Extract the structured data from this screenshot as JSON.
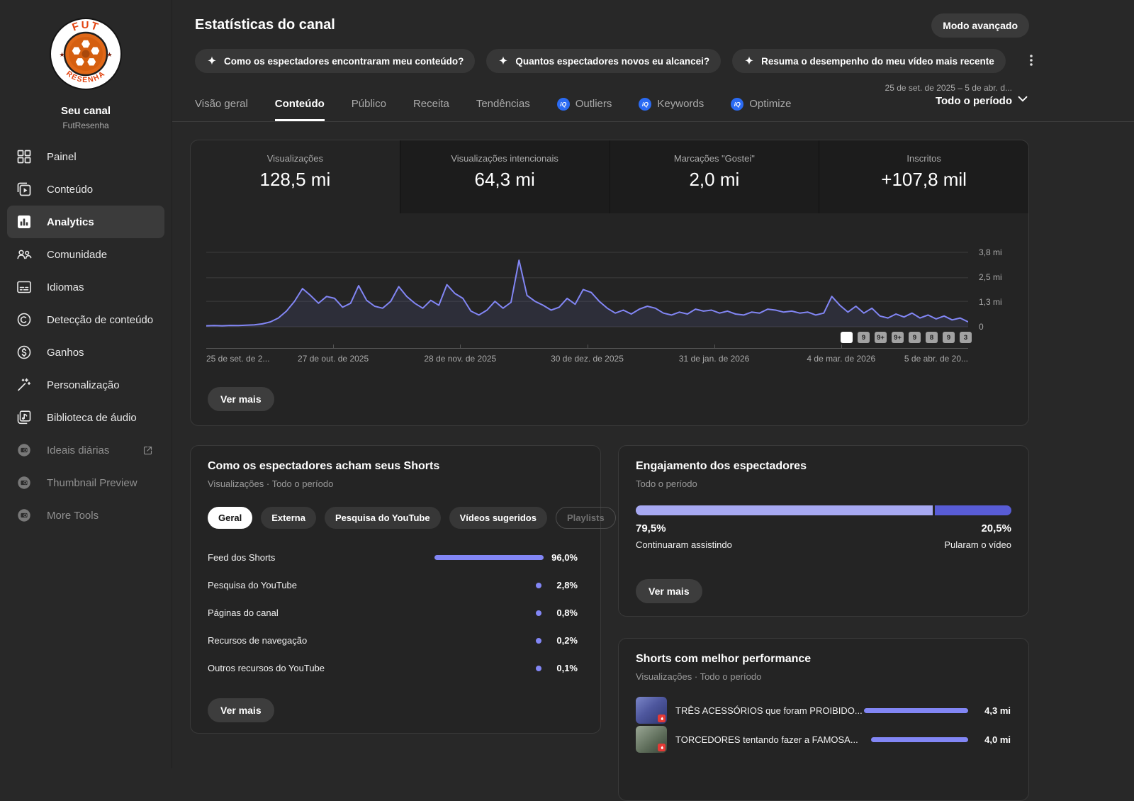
{
  "colors": {
    "accent": "#8286f5",
    "page_bg": "#282828",
    "card_bg": "#242424",
    "vidiq_blue": "#2b6bf3",
    "brand_orange": "#e06818"
  },
  "header": {
    "title": "Estatísticas do canal",
    "advanced_mode_label": "Modo avançado",
    "chips": [
      "Como os espectadores encontraram meu conteúdo?",
      "Quantos espectadores novos eu alcancei?",
      "Resuma o desempenho do meu vídeo mais recente"
    ]
  },
  "sidebar": {
    "channel": {
      "name": "Seu canal",
      "handle": "FutResenha",
      "avatar_top": "FUT",
      "avatar_bottom": "RESENHA"
    },
    "items": [
      {
        "label": "Painel"
      },
      {
        "label": "Conteúdo"
      },
      {
        "label": "Analytics"
      },
      {
        "label": "Comunidade"
      },
      {
        "label": "Idiomas"
      },
      {
        "label": "Detecção de conteúdo"
      },
      {
        "label": "Ganhos"
      },
      {
        "label": "Personalização"
      },
      {
        "label": "Biblioteca de áudio"
      },
      {
        "label": "Ideais diárias"
      },
      {
        "label": "Thumbnail Preview"
      },
      {
        "label": "More Tools"
      }
    ]
  },
  "tabs": [
    "Visão geral",
    "Conteúdo",
    "Público",
    "Receita",
    "Tendências",
    "Outliers",
    "Keywords",
    "Optimize"
  ],
  "period": {
    "range": "25 de set. de 2025 – 5 de abr. d...",
    "label": "Todo o período"
  },
  "stats": [
    {
      "label": "Visualizações",
      "value": "128,5 mi"
    },
    {
      "label": "Visualizações intencionais",
      "value": "64,3 mi"
    },
    {
      "label": "Marcações \"Gostei\"",
      "value": "2,0 mi"
    },
    {
      "label": "Inscritos",
      "value": "+107,8 mil"
    }
  ],
  "chart_data": {
    "type": "area",
    "series": [
      {
        "name": "Visualizações",
        "values": [
          0.05,
          0.06,
          0.05,
          0.07,
          0.06,
          0.08,
          0.1,
          0.15,
          0.25,
          0.45,
          0.8,
          1.3,
          1.95,
          1.6,
          1.2,
          1.55,
          1.45,
          1.0,
          1.2,
          2.1,
          1.35,
          1.05,
          0.95,
          1.3,
          2.05,
          1.55,
          1.2,
          0.95,
          1.35,
          1.1,
          2.15,
          1.7,
          1.45,
          0.8,
          0.6,
          0.85,
          1.3,
          0.95,
          1.25,
          3.4,
          1.6,
          1.3,
          1.1,
          0.85,
          1.0,
          1.45,
          1.15,
          1.9,
          1.75,
          1.3,
          0.95,
          0.7,
          0.85,
          0.65,
          0.9,
          1.05,
          0.95,
          0.7,
          0.6,
          0.75,
          0.65,
          0.9,
          0.8,
          0.85,
          0.7,
          0.8,
          0.65,
          0.6,
          0.75,
          0.7,
          0.9,
          0.85,
          0.75,
          0.8,
          0.7,
          0.75,
          0.6,
          0.7,
          1.55,
          1.1,
          0.75,
          1.05,
          0.7,
          0.95,
          0.55,
          0.45,
          0.65,
          0.5,
          0.7,
          0.45,
          0.6,
          0.4,
          0.55,
          0.35,
          0.45,
          0.25
        ]
      }
    ],
    "unit": "mi",
    "y_max": 3.8,
    "y_tick_values": [
      3.8,
      2.5,
      1.3,
      0
    ],
    "y_tick_labels": [
      "3,8 mi",
      "2,5 mi",
      "1,3 mi",
      "0"
    ],
    "x_labels": [
      "25 de set. de 2...",
      "27 de out. de 2025",
      "28 de nov. de 2025",
      "30 de dez. de 2025",
      "31 de jan. de 2026",
      "4 de mar. de 2026",
      "5 de abr. de 20..."
    ],
    "badges": [
      "",
      "9",
      "9+",
      "9+",
      "9",
      "8",
      "9",
      "3"
    ],
    "line_color": "#8286f5",
    "grid": true,
    "legend": false
  },
  "ver_mais": "Ver mais",
  "discovery": {
    "title": "Como os espectadores acham seus Shorts",
    "subtitle": "Visualizações · Todo o período",
    "tabs": [
      "Geral",
      "Externa",
      "Pesquisa do YouTube",
      "Vídeos sugeridos",
      "Playlists"
    ],
    "rows": [
      {
        "label": "Feed dos Shorts",
        "pct": "96,0%",
        "pct_num": 96.0
      },
      {
        "label": "Pesquisa do YouTube",
        "pct": "2,8%",
        "pct_num": 2.8
      },
      {
        "label": "Páginas do canal",
        "pct": "0,8%",
        "pct_num": 0.8
      },
      {
        "label": "Recursos de navegação",
        "pct": "0,2%",
        "pct_num": 0.2
      },
      {
        "label": "Outros recursos do YouTube",
        "pct": "0,1%",
        "pct_num": 0.1
      }
    ],
    "button": "Ver mais"
  },
  "engagement": {
    "title": "Engajamento dos espectadores",
    "subtitle": "Todo o período",
    "left": {
      "pct": "79,5%",
      "pct_num": 79.5,
      "label": "Continuaram assistindo",
      "color": "#a7a9f2"
    },
    "right": {
      "pct": "20,5%",
      "pct_num": 20.5,
      "label": "Pularam o vídeo",
      "color": "#585cd6"
    },
    "button": "Ver mais"
  },
  "top_shorts": {
    "title": "Shorts com melhor performance",
    "subtitle": "Visualizações · Todo o período",
    "items": [
      {
        "title": "TRÊS ACESSÓRIOS que foram PROIBIDO...",
        "value": "4,3 mi",
        "value_num": 4.3
      },
      {
        "title": "TORCEDORES tentando fazer a FAMOSA...",
        "value": "4,0 mi",
        "value_num": 4.0
      }
    ]
  }
}
